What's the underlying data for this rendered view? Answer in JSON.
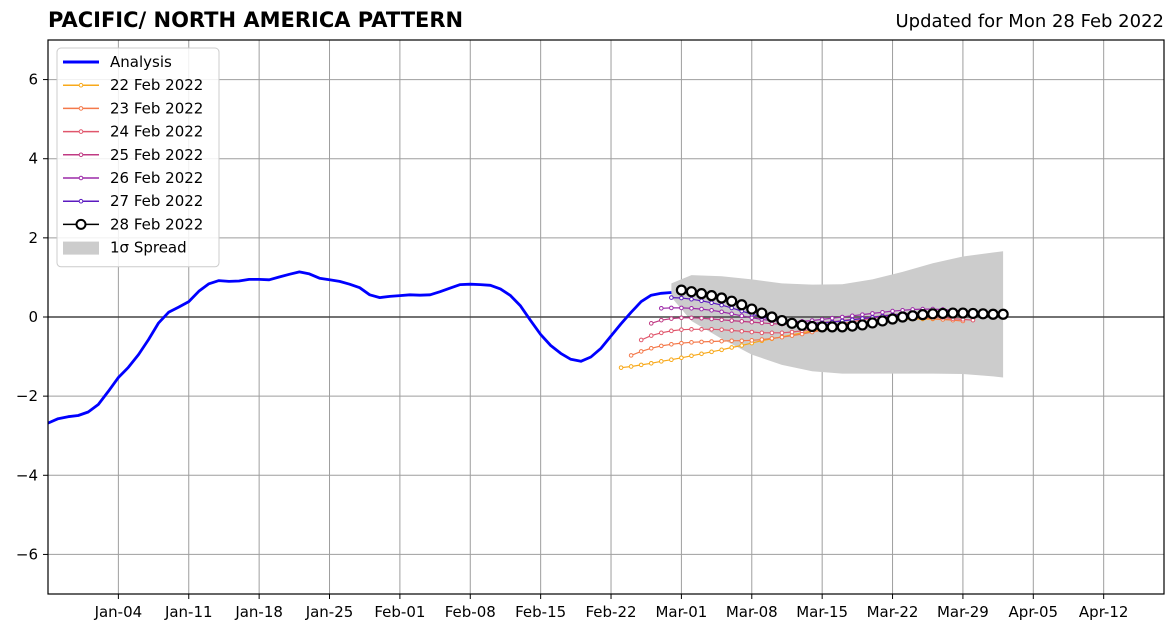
{
  "header": {
    "title": "PACIFIC/ NORTH AMERICA PATTERN",
    "updated": "Updated for Mon 28 Feb 2022"
  },
  "chart_data": {
    "type": "line",
    "title": "PACIFIC/ NORTH AMERICA PATTERN",
    "xlabel": "",
    "ylabel": "",
    "x_axis_type": "date",
    "xlim": [
      "2021-12-28",
      "2022-04-18"
    ],
    "ylim": [
      -7,
      7
    ],
    "x_ticks": [
      {
        "date": "2022-01-04",
        "label": "Jan-04"
      },
      {
        "date": "2022-01-11",
        "label": "Jan-11"
      },
      {
        "date": "2022-01-18",
        "label": "Jan-18"
      },
      {
        "date": "2022-01-25",
        "label": "Jan-25"
      },
      {
        "date": "2022-02-01",
        "label": "Feb-01"
      },
      {
        "date": "2022-02-08",
        "label": "Feb-08"
      },
      {
        "date": "2022-02-15",
        "label": "Feb-15"
      },
      {
        "date": "2022-02-22",
        "label": "Feb-22"
      },
      {
        "date": "2022-03-01",
        "label": "Mar-01"
      },
      {
        "date": "2022-03-08",
        "label": "Mar-08"
      },
      {
        "date": "2022-03-15",
        "label": "Mar-15"
      },
      {
        "date": "2022-03-22",
        "label": "Mar-22"
      },
      {
        "date": "2022-03-29",
        "label": "Mar-29"
      },
      {
        "date": "2022-04-05",
        "label": "Apr-05"
      },
      {
        "date": "2022-04-12",
        "label": "Apr-12"
      }
    ],
    "y_ticks": [
      {
        "value": 6,
        "label": "6"
      },
      {
        "value": 4,
        "label": "4"
      },
      {
        "value": 2,
        "label": "2"
      },
      {
        "value": 0,
        "label": "0"
      },
      {
        "value": -2,
        "label": "−2"
      },
      {
        "value": -4,
        "label": "−4"
      },
      {
        "value": -6,
        "label": "−6"
      }
    ],
    "grid": true,
    "legend_position": "top-left",
    "zero_line": true,
    "analysis": {
      "name": "Analysis",
      "color": "#0000ff",
      "x": [
        "2021-12-28",
        "2021-12-29",
        "2021-12-30",
        "2021-12-31",
        "2022-01-01",
        "2022-01-02",
        "2022-01-03",
        "2022-01-04",
        "2022-01-05",
        "2022-01-06",
        "2022-01-07",
        "2022-01-08",
        "2022-01-09",
        "2022-01-10",
        "2022-01-11",
        "2022-01-12",
        "2022-01-13",
        "2022-01-14",
        "2022-01-15",
        "2022-01-16",
        "2022-01-17",
        "2022-01-18",
        "2022-01-19",
        "2022-01-20",
        "2022-01-21",
        "2022-01-22",
        "2022-01-23",
        "2022-01-24",
        "2022-01-25",
        "2022-01-26",
        "2022-01-27",
        "2022-01-28",
        "2022-01-29",
        "2022-01-30",
        "2022-01-31",
        "2022-02-01",
        "2022-02-02",
        "2022-02-03",
        "2022-02-04",
        "2022-02-05",
        "2022-02-06",
        "2022-02-07",
        "2022-02-08",
        "2022-02-09",
        "2022-02-10",
        "2022-02-11",
        "2022-02-12",
        "2022-02-13",
        "2022-02-14",
        "2022-02-15",
        "2022-02-16",
        "2022-02-17",
        "2022-02-18",
        "2022-02-19",
        "2022-02-20",
        "2022-02-21",
        "2022-02-22",
        "2022-02-23",
        "2022-02-24",
        "2022-02-25",
        "2022-02-26",
        "2022-02-27",
        "2022-02-28"
      ],
      "y": [
        -2.68,
        -2.57,
        -2.52,
        -2.49,
        -2.4,
        -2.21,
        -1.88,
        -1.53,
        -1.27,
        -0.95,
        -0.57,
        -0.15,
        0.12,
        0.25,
        0.39,
        0.65,
        0.84,
        0.92,
        0.9,
        0.91,
        0.95,
        0.95,
        0.94,
        1.01,
        1.08,
        1.14,
        1.09,
        0.98,
        0.94,
        0.9,
        0.83,
        0.74,
        0.56,
        0.49,
        0.52,
        0.54,
        0.56,
        0.55,
        0.56,
        0.64,
        0.73,
        0.82,
        0.83,
        0.82,
        0.8,
        0.71,
        0.54,
        0.28,
        -0.09,
        -0.44,
        -0.72,
        -0.92,
        -1.07,
        -1.12,
        -1.01,
        -0.79,
        -0.48,
        -0.17,
        0.12,
        0.39,
        0.55,
        0.6,
        0.62
      ]
    },
    "spread": {
      "name": "1σ Spread",
      "color": "#cccccc",
      "x": [
        "2022-02-28",
        "2022-03-02",
        "2022-03-05",
        "2022-03-08",
        "2022-03-11",
        "2022-03-14",
        "2022-03-17",
        "2022-03-20",
        "2022-03-23",
        "2022-03-26",
        "2022-03-29",
        "2022-04-01",
        "2022-04-02"
      ],
      "upper": [
        0.85,
        1.06,
        1.03,
        0.95,
        0.85,
        0.82,
        0.83,
        0.95,
        1.14,
        1.36,
        1.53,
        1.63,
        1.66
      ],
      "lower": [
        0.5,
        -0.1,
        -0.55,
        -0.95,
        -1.21,
        -1.37,
        -1.43,
        -1.43,
        -1.43,
        -1.43,
        -1.44,
        -1.5,
        -1.53
      ]
    },
    "forecasts": [
      {
        "name": "22 Feb 2022",
        "color": "#f8a91a",
        "x": [
          "2022-02-23",
          "2022-02-24",
          "2022-02-25",
          "2022-02-26",
          "2022-02-27",
          "2022-02-28",
          "2022-03-01",
          "2022-03-02",
          "2022-03-03",
          "2022-03-04",
          "2022-03-05",
          "2022-03-06",
          "2022-03-07",
          "2022-03-08",
          "2022-03-09",
          "2022-03-10",
          "2022-03-11",
          "2022-03-12",
          "2022-03-13",
          "2022-03-14",
          "2022-03-15",
          "2022-03-16",
          "2022-03-17",
          "2022-03-18",
          "2022-03-19",
          "2022-03-20",
          "2022-03-21",
          "2022-03-22",
          "2022-03-23",
          "2022-03-24",
          "2022-03-25",
          "2022-03-26",
          "2022-03-27",
          "2022-03-28"
        ],
        "y": [
          -1.28,
          -1.25,
          -1.21,
          -1.17,
          -1.12,
          -1.08,
          -1.03,
          -0.98,
          -0.93,
          -0.88,
          -0.83,
          -0.77,
          -0.72,
          -0.66,
          -0.6,
          -0.55,
          -0.5,
          -0.45,
          -0.4,
          -0.35,
          -0.31,
          -0.27,
          -0.23,
          -0.2,
          -0.16,
          -0.13,
          -0.1,
          -0.08,
          -0.06,
          -0.05,
          -0.05,
          -0.05,
          -0.06,
          -0.07
        ]
      },
      {
        "name": "23 Feb 2022",
        "color": "#f4794a",
        "x": [
          "2022-02-24",
          "2022-02-25",
          "2022-02-26",
          "2022-02-27",
          "2022-02-28",
          "2022-03-01",
          "2022-03-02",
          "2022-03-03",
          "2022-03-04",
          "2022-03-05",
          "2022-03-06",
          "2022-03-07",
          "2022-03-08",
          "2022-03-09",
          "2022-03-10",
          "2022-03-11",
          "2022-03-12",
          "2022-03-13",
          "2022-03-14",
          "2022-03-15",
          "2022-03-16",
          "2022-03-17",
          "2022-03-18",
          "2022-03-19",
          "2022-03-20",
          "2022-03-21",
          "2022-03-22",
          "2022-03-23",
          "2022-03-24",
          "2022-03-25",
          "2022-03-26",
          "2022-03-27",
          "2022-03-28",
          "2022-03-29"
        ],
        "y": [
          -0.97,
          -0.87,
          -0.79,
          -0.73,
          -0.69,
          -0.66,
          -0.64,
          -0.63,
          -0.62,
          -0.61,
          -0.6,
          -0.6,
          -0.59,
          -0.57,
          -0.54,
          -0.51,
          -0.47,
          -0.43,
          -0.38,
          -0.33,
          -0.29,
          -0.24,
          -0.2,
          -0.16,
          -0.12,
          -0.09,
          -0.06,
          -0.04,
          -0.03,
          -0.03,
          -0.04,
          -0.06,
          -0.08,
          -0.1
        ]
      },
      {
        "name": "24 Feb 2022",
        "color": "#e0566c",
        "x": [
          "2022-02-25",
          "2022-02-26",
          "2022-02-27",
          "2022-02-28",
          "2022-03-01",
          "2022-03-02",
          "2022-03-03",
          "2022-03-04",
          "2022-03-05",
          "2022-03-06",
          "2022-03-07",
          "2022-03-08",
          "2022-03-09",
          "2022-03-10",
          "2022-03-11",
          "2022-03-12",
          "2022-03-13",
          "2022-03-14",
          "2022-03-15",
          "2022-03-16",
          "2022-03-17",
          "2022-03-18",
          "2022-03-19",
          "2022-03-20",
          "2022-03-21",
          "2022-03-22",
          "2022-03-23",
          "2022-03-24",
          "2022-03-25",
          "2022-03-26",
          "2022-03-27",
          "2022-03-28",
          "2022-03-29",
          "2022-03-30"
        ],
        "y": [
          -0.58,
          -0.47,
          -0.4,
          -0.35,
          -0.32,
          -0.31,
          -0.31,
          -0.31,
          -0.32,
          -0.34,
          -0.36,
          -0.38,
          -0.4,
          -0.4,
          -0.4,
          -0.38,
          -0.35,
          -0.31,
          -0.27,
          -0.22,
          -0.17,
          -0.12,
          -0.07,
          -0.03,
          0.01,
          0.04,
          0.05,
          0.05,
          0.04,
          0.02,
          -0.01,
          -0.04,
          -0.06,
          -0.08
        ]
      },
      {
        "name": "25 Feb 2022",
        "color": "#c03a83",
        "x": [
          "2022-02-26",
          "2022-02-27",
          "2022-02-28",
          "2022-03-01",
          "2022-03-02",
          "2022-03-03",
          "2022-03-04",
          "2022-03-05",
          "2022-03-06",
          "2022-03-07",
          "2022-03-08",
          "2022-03-09",
          "2022-03-10",
          "2022-03-11",
          "2022-03-12",
          "2022-03-13",
          "2022-03-14",
          "2022-03-15",
          "2022-03-16",
          "2022-03-17",
          "2022-03-18",
          "2022-03-19",
          "2022-03-20",
          "2022-03-21",
          "2022-03-22",
          "2022-03-23",
          "2022-03-24",
          "2022-03-25",
          "2022-03-26",
          "2022-03-27",
          "2022-03-28",
          "2022-03-29",
          "2022-03-30",
          "2022-03-31"
        ],
        "y": [
          -0.16,
          -0.08,
          -0.04,
          -0.02,
          -0.02,
          -0.03,
          -0.05,
          -0.07,
          -0.09,
          -0.11,
          -0.13,
          -0.15,
          -0.17,
          -0.18,
          -0.18,
          -0.17,
          -0.16,
          -0.14,
          -0.12,
          -0.09,
          -0.06,
          -0.03,
          0.0,
          0.03,
          0.06,
          0.08,
          0.1,
          0.11,
          0.11,
          0.1,
          0.09,
          0.08,
          0.07,
          0.06
        ]
      },
      {
        "name": "26 Feb 2022",
        "color": "#9c2aa8",
        "x": [
          "2022-02-27",
          "2022-02-28",
          "2022-03-01",
          "2022-03-02",
          "2022-03-03",
          "2022-03-04",
          "2022-03-05",
          "2022-03-06",
          "2022-03-07",
          "2022-03-08",
          "2022-03-09",
          "2022-03-10",
          "2022-03-11",
          "2022-03-12",
          "2022-03-13",
          "2022-03-14",
          "2022-03-15",
          "2022-03-16",
          "2022-03-17",
          "2022-03-18",
          "2022-03-19",
          "2022-03-20",
          "2022-03-21",
          "2022-03-22",
          "2022-03-23",
          "2022-03-24",
          "2022-03-25",
          "2022-03-26",
          "2022-03-27",
          "2022-03-28",
          "2022-03-29",
          "2022-03-30",
          "2022-03-31",
          "2022-04-01"
        ],
        "y": [
          0.22,
          0.23,
          0.23,
          0.22,
          0.2,
          0.17,
          0.13,
          0.08,
          0.03,
          -0.02,
          -0.06,
          -0.09,
          -0.11,
          -0.12,
          -0.11,
          -0.09,
          -0.06,
          -0.03,
          0.0,
          0.03,
          0.06,
          0.09,
          0.12,
          0.15,
          0.17,
          0.19,
          0.2,
          0.2,
          0.19,
          0.17,
          0.15,
          0.13,
          0.12,
          0.11
        ]
      },
      {
        "name": "27 Feb 2022",
        "color": "#5b1ac0",
        "x": [
          "2022-02-28",
          "2022-03-01",
          "2022-03-02",
          "2022-03-03",
          "2022-03-04",
          "2022-03-05",
          "2022-03-06",
          "2022-03-07",
          "2022-03-08",
          "2022-03-09",
          "2022-03-10",
          "2022-03-11",
          "2022-03-12",
          "2022-03-13",
          "2022-03-14",
          "2022-03-15",
          "2022-03-16",
          "2022-03-17",
          "2022-03-18",
          "2022-03-19",
          "2022-03-20",
          "2022-03-21",
          "2022-03-22",
          "2022-03-23",
          "2022-03-24",
          "2022-03-25",
          "2022-03-26",
          "2022-03-27",
          "2022-03-28",
          "2022-03-29",
          "2022-03-30",
          "2022-03-31",
          "2022-04-01",
          "2022-04-02"
        ],
        "y": [
          0.49,
          0.48,
          0.45,
          0.41,
          0.36,
          0.3,
          0.23,
          0.15,
          0.07,
          0.0,
          -0.06,
          -0.11,
          -0.14,
          -0.16,
          -0.16,
          -0.15,
          -0.13,
          -0.1,
          -0.07,
          -0.04,
          -0.01,
          0.02,
          0.05,
          0.07,
          0.09,
          0.1,
          0.11,
          0.11,
          0.11,
          0.1,
          0.09,
          0.08,
          0.07,
          0.07
        ]
      },
      {
        "name": "28 Feb 2022",
        "color": "#000000",
        "open_markers": true,
        "x": [
          "2022-03-01",
          "2022-03-02",
          "2022-03-03",
          "2022-03-04",
          "2022-03-05",
          "2022-03-06",
          "2022-03-07",
          "2022-03-08",
          "2022-03-09",
          "2022-03-10",
          "2022-03-11",
          "2022-03-12",
          "2022-03-13",
          "2022-03-14",
          "2022-03-15",
          "2022-03-16",
          "2022-03-17",
          "2022-03-18",
          "2022-03-19",
          "2022-03-20",
          "2022-03-21",
          "2022-03-22",
          "2022-03-23",
          "2022-03-24",
          "2022-03-25",
          "2022-03-26",
          "2022-03-27",
          "2022-03-28",
          "2022-03-29",
          "2022-03-30",
          "2022-03-31",
          "2022-04-01",
          "2022-04-02"
        ],
        "y": [
          0.68,
          0.64,
          0.59,
          0.54,
          0.48,
          0.4,
          0.31,
          0.2,
          0.1,
          0.0,
          -0.09,
          -0.16,
          -0.21,
          -0.24,
          -0.25,
          -0.25,
          -0.25,
          -0.23,
          -0.2,
          -0.15,
          -0.1,
          -0.05,
          0.0,
          0.03,
          0.06,
          0.08,
          0.09,
          0.1,
          0.1,
          0.09,
          0.08,
          0.07,
          0.07
        ]
      }
    ]
  }
}
